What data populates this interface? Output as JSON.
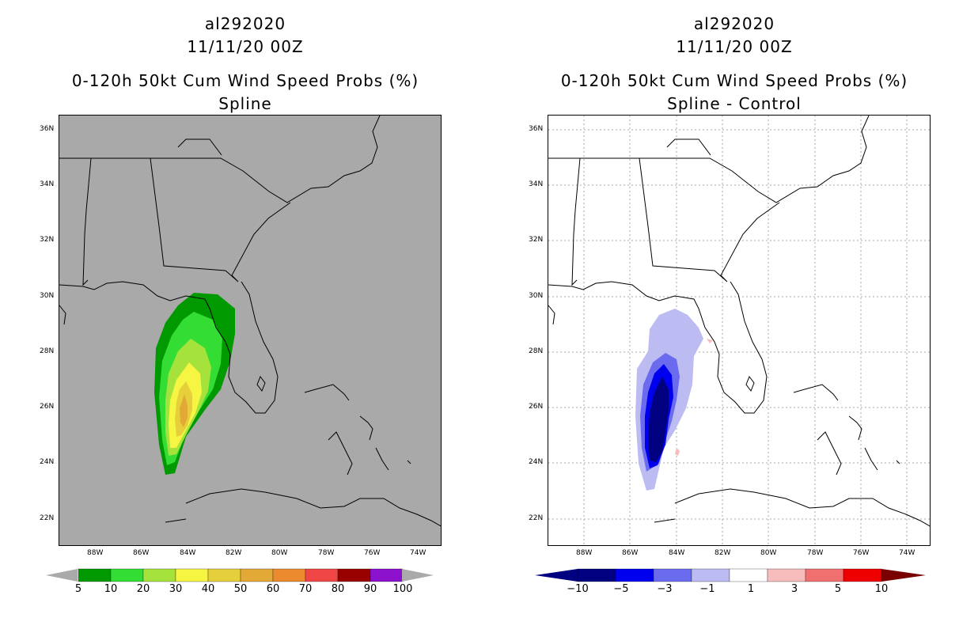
{
  "left": {
    "storm_id": "al292020",
    "datetime": "11/11/20 00Z",
    "title": "0-120h 50kt Cum Wind Speed Probs (%)",
    "subtitle": "Spline",
    "colorbar": {
      "labels": [
        "5",
        "10",
        "20",
        "30",
        "40",
        "50",
        "60",
        "70",
        "80",
        "90",
        "100"
      ],
      "colors": [
        "#009900",
        "#33dd33",
        "#a6e23c",
        "#f5f542",
        "#e5d03c",
        "#e3a937",
        "#ec8a30",
        "#f04545",
        "#990000",
        "#8b11cc"
      ]
    }
  },
  "right": {
    "storm_id": "al292020",
    "datetime": "11/11/20 00Z",
    "title": "0-120h 50kt Cum Wind Speed Probs (%)",
    "subtitle": "Spline - Control",
    "colorbar": {
      "labels": [
        "−10",
        "−5",
        "−3",
        "−1",
        "1",
        "3",
        "5",
        "10"
      ],
      "colors": [
        "#000080",
        "#0000ee",
        "#6b6bef",
        "#bcbcf3",
        "#ffffff",
        "#f7bcbc",
        "#f07070",
        "#ee0000"
      ],
      "end_left": "#000080",
      "end_right": "#7a0000"
    }
  },
  "axes": {
    "lat_labels": [
      "36N",
      "34N",
      "32N",
      "30N",
      "28N",
      "26N",
      "24N",
      "22N"
    ],
    "lon_labels": [
      "88W",
      "86W",
      "84W",
      "82W",
      "80W",
      "78W",
      "76W",
      "74W"
    ]
  },
  "colors": {
    "map_background_left": "#a9a9a9",
    "map_background_right": "#ffffff"
  }
}
